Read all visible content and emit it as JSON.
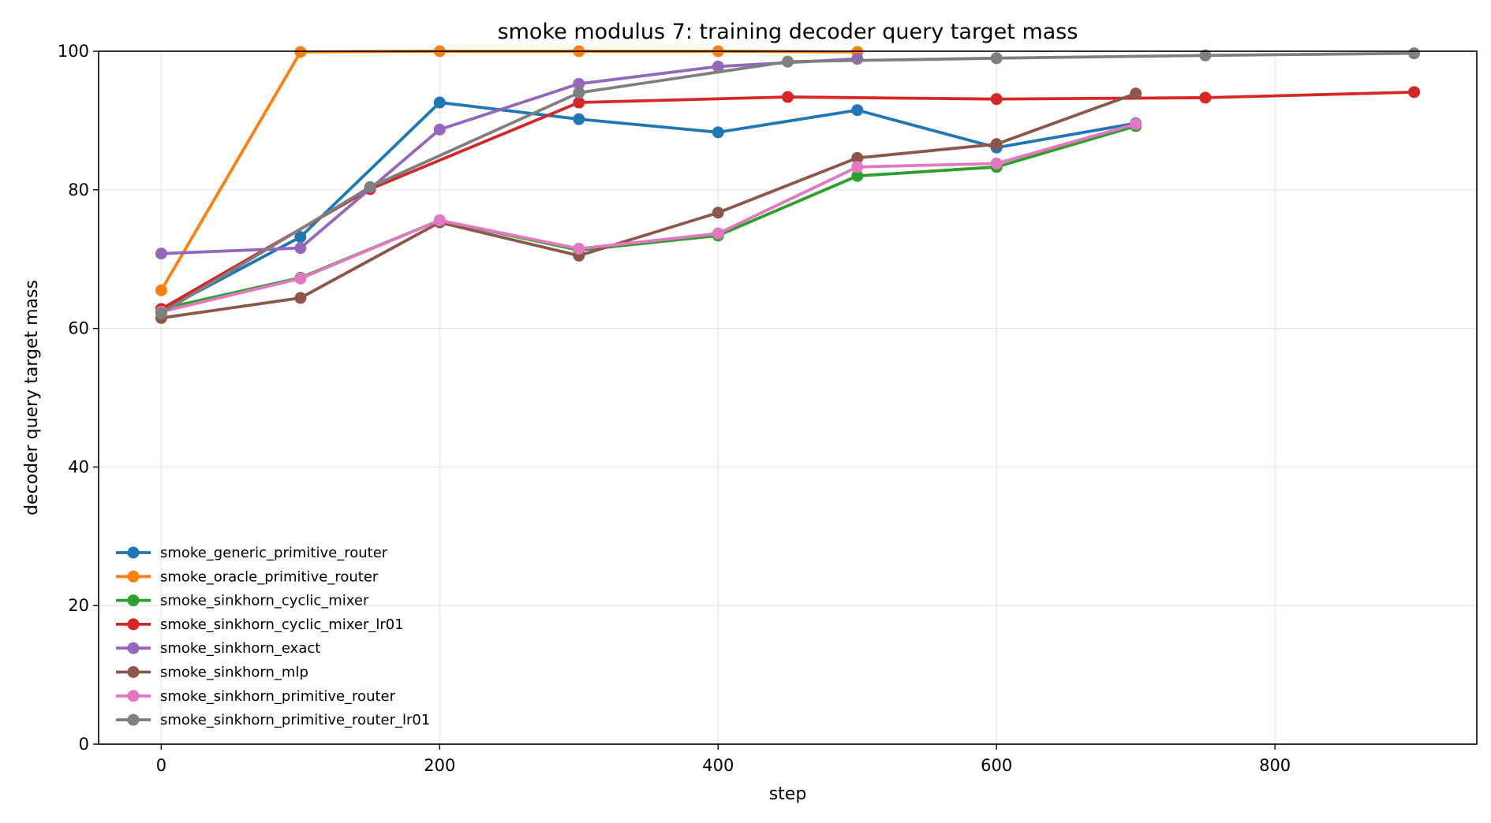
{
  "chart_data": {
    "type": "line",
    "title": "smoke modulus 7: training decoder query target mass",
    "xlabel": "step",
    "ylabel": "decoder query target mass",
    "xlim": [
      -45,
      945
    ],
    "ylim": [
      0,
      100
    ],
    "xticks": [
      0,
      200,
      400,
      600,
      800
    ],
    "yticks": [
      0,
      20,
      40,
      60,
      80,
      100
    ],
    "grid": true,
    "legend_position": "lower-left",
    "series": [
      {
        "name": "smoke_generic_primitive_router",
        "color": "#1f77b4",
        "x": [
          0,
          100,
          200,
          300,
          400,
          500,
          600,
          700
        ],
        "y": [
          62.5,
          73.2,
          92.6,
          90.2,
          88.3,
          91.5,
          86.1,
          89.6
        ]
      },
      {
        "name": "smoke_oracle_primitive_router",
        "color": "#ff7f0e",
        "x": [
          0,
          100,
          200,
          300,
          400,
          500
        ],
        "y": [
          65.5,
          99.9,
          100.0,
          100.0,
          100.0,
          99.9
        ]
      },
      {
        "name": "smoke_sinkhorn_cyclic_mixer",
        "color": "#2ca02c",
        "x": [
          0,
          100,
          200,
          300,
          400,
          500,
          600,
          700
        ],
        "y": [
          62.8,
          67.3,
          75.6,
          71.3,
          73.4,
          82.0,
          83.3,
          89.2
        ]
      },
      {
        "name": "smoke_sinkhorn_cyclic_mixer_lr01",
        "color": "#d62728",
        "x": [
          0,
          150,
          300,
          450,
          600,
          750,
          900
        ],
        "y": [
          62.8,
          80.1,
          92.6,
          93.4,
          93.1,
          93.3,
          94.1
        ]
      },
      {
        "name": "smoke_sinkhorn_exact",
        "color": "#9467bd",
        "x": [
          0,
          100,
          200,
          300,
          400,
          500
        ],
        "y": [
          70.8,
          71.6,
          88.7,
          95.3,
          97.8,
          98.9
        ]
      },
      {
        "name": "smoke_sinkhorn_mlp",
        "color": "#8c564b",
        "x": [
          0,
          100,
          200,
          300,
          400,
          500,
          600,
          700
        ],
        "y": [
          61.5,
          64.4,
          75.3,
          70.5,
          76.7,
          84.6,
          86.6,
          93.9
        ]
      },
      {
        "name": "smoke_sinkhorn_primitive_router",
        "color": "#e377c2",
        "x": [
          0,
          100,
          200,
          300,
          400,
          500,
          600,
          700
        ],
        "y": [
          62.4,
          67.2,
          75.6,
          71.5,
          73.7,
          83.3,
          83.8,
          89.5
        ]
      },
      {
        "name": "smoke_sinkhorn_primitive_router_lr01",
        "color": "#7f7f7f",
        "x": [
          0,
          150,
          300,
          450,
          600,
          750,
          900
        ],
        "y": [
          62.2,
          80.4,
          94.0,
          98.5,
          99.0,
          99.4,
          99.7
        ]
      }
    ]
  }
}
